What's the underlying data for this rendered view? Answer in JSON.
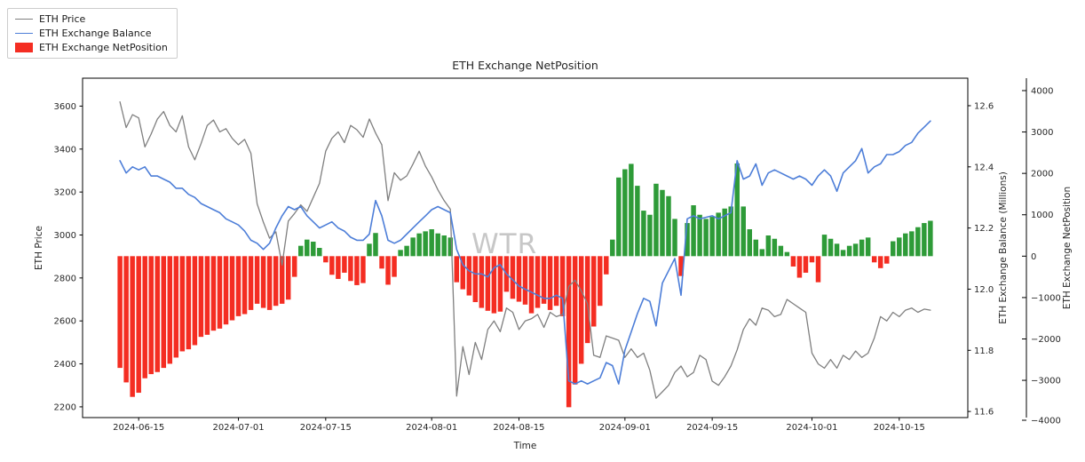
{
  "title": "ETH Exchange NetPosition",
  "watermark": "WTR",
  "colors": {
    "price_line": "#7f7f7f",
    "balance_line": "#4d7ed8",
    "net_positive": "#2e9b38",
    "net_negative": "#f42d22",
    "spine": "#000000",
    "watermark": "#c7c7c7"
  },
  "legend": {
    "position": "top-left",
    "items": [
      {
        "label": "ETH Price",
        "swatch": "line",
        "color": "#7f7f7f"
      },
      {
        "label": "ETH Exchange Balance",
        "swatch": "line",
        "color": "#4d7ed8"
      },
      {
        "label": "ETH Exchange NetPosition",
        "swatch": "patch",
        "color": "#f42d22"
      }
    ]
  },
  "axes": {
    "x": {
      "label": "Time",
      "range": [
        "2024-06-06",
        "2024-10-26"
      ],
      "ticks": [
        "2024-06-15",
        "2024-07-01",
        "2024-07-15",
        "2024-08-01",
        "2024-08-15",
        "2024-09-01",
        "2024-09-15",
        "2024-10-01",
        "2024-10-15"
      ]
    },
    "price": {
      "label": "ETH Price",
      "side": "left",
      "range": [
        2150,
        3730
      ],
      "ticks": [
        {
          "v": 3600,
          "label": "3600"
        },
        {
          "v": 3400,
          "label": "3400"
        },
        {
          "v": 3200,
          "label": "3200"
        },
        {
          "v": 3000,
          "label": "3000"
        },
        {
          "v": 2800,
          "label": "2800"
        },
        {
          "v": 2600,
          "label": "2600"
        },
        {
          "v": 2400,
          "label": "2400"
        },
        {
          "v": 2200,
          "label": "2200"
        }
      ]
    },
    "balance": {
      "label": "ETH Exchange Balance (Millions)",
      "side": "right",
      "range": [
        11.58,
        12.69
      ],
      "ticks": [
        {
          "v": 12.6,
          "label": "12.6"
        },
        {
          "v": 12.4,
          "label": "12.4"
        },
        {
          "v": 12.2,
          "label": "12.2"
        },
        {
          "v": 12.0,
          "label": "12.0"
        },
        {
          "v": 11.8,
          "label": "11.8"
        },
        {
          "v": 11.6,
          "label": "11.6"
        }
      ]
    },
    "net": {
      "label": "ETH Exchange NetPosition",
      "side": "right-offset",
      "range": [
        -3900,
        4300
      ],
      "ticks": [
        {
          "v": 4000,
          "label": "4000"
        },
        {
          "v": 3000,
          "label": "3000"
        },
        {
          "v": 2000,
          "label": "2000"
        },
        {
          "v": 1000,
          "label": "1000"
        },
        {
          "v": 0,
          "label": "0"
        },
        {
          "v": -1000,
          "label": "−1000"
        },
        {
          "v": -2000,
          "label": "−2000"
        },
        {
          "v": -3000,
          "label": "−3000"
        },
        {
          "v": -4000,
          "label": "−4000"
        }
      ]
    }
  },
  "chart_data": {
    "type": "mixed",
    "title": "ETH Exchange NetPosition",
    "xlabel": "Time",
    "grid": false,
    "legend_position": "upper-left-outside",
    "x": [
      "2024-06-12",
      "2024-06-13",
      "2024-06-14",
      "2024-06-15",
      "2024-06-16",
      "2024-06-17",
      "2024-06-18",
      "2024-06-19",
      "2024-06-20",
      "2024-06-21",
      "2024-06-22",
      "2024-06-23",
      "2024-06-24",
      "2024-06-25",
      "2024-06-26",
      "2024-06-27",
      "2024-06-28",
      "2024-06-29",
      "2024-06-30",
      "2024-07-01",
      "2024-07-02",
      "2024-07-03",
      "2024-07-04",
      "2024-07-05",
      "2024-07-06",
      "2024-07-07",
      "2024-07-08",
      "2024-07-09",
      "2024-07-10",
      "2024-07-11",
      "2024-07-12",
      "2024-07-13",
      "2024-07-14",
      "2024-07-15",
      "2024-07-16",
      "2024-07-17",
      "2024-07-18",
      "2024-07-19",
      "2024-07-20",
      "2024-07-21",
      "2024-07-22",
      "2024-07-23",
      "2024-07-24",
      "2024-07-25",
      "2024-07-26",
      "2024-07-27",
      "2024-07-28",
      "2024-07-29",
      "2024-07-30",
      "2024-07-31",
      "2024-08-01",
      "2024-08-02",
      "2024-08-03",
      "2024-08-04",
      "2024-08-05",
      "2024-08-06",
      "2024-08-07",
      "2024-08-08",
      "2024-08-09",
      "2024-08-10",
      "2024-08-11",
      "2024-08-12",
      "2024-08-13",
      "2024-08-14",
      "2024-08-15",
      "2024-08-16",
      "2024-08-17",
      "2024-08-18",
      "2024-08-19",
      "2024-08-20",
      "2024-08-21",
      "2024-08-22",
      "2024-08-23",
      "2024-08-24",
      "2024-08-25",
      "2024-08-26",
      "2024-08-27",
      "2024-08-28",
      "2024-08-29",
      "2024-08-30",
      "2024-08-31",
      "2024-09-01",
      "2024-09-02",
      "2024-09-03",
      "2024-09-04",
      "2024-09-05",
      "2024-09-06",
      "2024-09-07",
      "2024-09-08",
      "2024-09-09",
      "2024-09-10",
      "2024-09-11",
      "2024-09-12",
      "2024-09-13",
      "2024-09-14",
      "2024-09-15",
      "2024-09-16",
      "2024-09-17",
      "2024-09-18",
      "2024-09-19",
      "2024-09-20",
      "2024-09-21",
      "2024-09-22",
      "2024-09-23",
      "2024-09-24",
      "2024-09-25",
      "2024-09-26",
      "2024-09-27",
      "2024-09-28",
      "2024-09-29",
      "2024-09-30",
      "2024-10-01",
      "2024-10-02",
      "2024-10-03",
      "2024-10-04",
      "2024-10-05",
      "2024-10-06",
      "2024-10-07",
      "2024-10-08",
      "2024-10-09",
      "2024-10-10",
      "2024-10-11",
      "2024-10-12",
      "2024-10-13",
      "2024-10-14",
      "2024-10-15",
      "2024-10-16",
      "2024-10-17",
      "2024-10-18",
      "2024-10-19",
      "2024-10-20"
    ],
    "series": [
      {
        "name": "ETH Price",
        "type": "line",
        "yaxis": "price",
        "color": "#7f7f7f",
        "values": [
          3620,
          3500,
          3560,
          3545,
          3410,
          3470,
          3540,
          3575,
          3510,
          3480,
          3555,
          3410,
          3350,
          3425,
          3510,
          3535,
          3480,
          3495,
          3450,
          3420,
          3445,
          3380,
          3145,
          3060,
          2985,
          3015,
          2860,
          3065,
          3100,
          3140,
          3110,
          3175,
          3240,
          3390,
          3450,
          3480,
          3430,
          3510,
          3490,
          3455,
          3540,
          3475,
          3420,
          3160,
          3290,
          3255,
          3275,
          3330,
          3390,
          3320,
          3270,
          3210,
          3160,
          3120,
          2250,
          2480,
          2350,
          2500,
          2420,
          2560,
          2600,
          2550,
          2660,
          2640,
          2560,
          2600,
          2610,
          2630,
          2570,
          2640,
          2620,
          2630,
          2760,
          2790,
          2740,
          2680,
          2440,
          2430,
          2530,
          2520,
          2510,
          2430,
          2470,
          2430,
          2450,
          2370,
          2240,
          2270,
          2300,
          2360,
          2390,
          2340,
          2360,
          2440,
          2420,
          2320,
          2300,
          2340,
          2390,
          2465,
          2560,
          2610,
          2580,
          2660,
          2650,
          2620,
          2630,
          2700,
          2680,
          2660,
          2640,
          2450,
          2400,
          2380,
          2420,
          2380,
          2440,
          2420,
          2460,
          2430,
          2450,
          2520,
          2620,
          2600,
          2640,
          2620,
          2650,
          2660,
          2640,
          2655,
          2650
        ]
      },
      {
        "name": "ETH Exchange Balance",
        "type": "line",
        "yaxis": "balance",
        "color": "#4d7ed8",
        "values": [
          12.42,
          12.38,
          12.4,
          12.39,
          12.4,
          12.37,
          12.37,
          12.36,
          12.35,
          12.33,
          12.33,
          12.31,
          12.3,
          12.28,
          12.27,
          12.26,
          12.25,
          12.23,
          12.22,
          12.21,
          12.19,
          12.16,
          12.15,
          12.13,
          12.15,
          12.2,
          12.24,
          12.27,
          12.26,
          12.27,
          12.24,
          12.22,
          12.2,
          12.21,
          12.22,
          12.2,
          12.19,
          12.17,
          12.16,
          12.16,
          12.18,
          12.29,
          12.24,
          12.16,
          12.15,
          12.16,
          12.18,
          12.2,
          12.22,
          12.24,
          12.26,
          12.27,
          12.26,
          12.25,
          12.13,
          12.08,
          12.06,
          12.05,
          12.05,
          12.04,
          12.07,
          12.08,
          12.05,
          12.03,
          12.01,
          12.0,
          11.99,
          11.98,
          11.97,
          11.97,
          11.98,
          11.97,
          11.7,
          11.69,
          11.7,
          11.69,
          11.7,
          11.71,
          11.76,
          11.75,
          11.69,
          11.8,
          11.86,
          11.92,
          11.97,
          11.96,
          11.88,
          12.02,
          12.06,
          12.1,
          11.98,
          12.23,
          12.24,
          12.23,
          12.235,
          12.24,
          12.23,
          12.24,
          12.25,
          12.42,
          12.36,
          12.37,
          12.41,
          12.34,
          12.38,
          12.39,
          12.38,
          12.37,
          12.36,
          12.37,
          12.36,
          12.34,
          12.37,
          12.39,
          12.37,
          12.32,
          12.38,
          12.4,
          12.42,
          12.46,
          12.38,
          12.4,
          12.41,
          12.44,
          12.44,
          12.45,
          12.47,
          12.48,
          12.51,
          12.53,
          12.55
        ]
      },
      {
        "name": "ETH Exchange NetPosition",
        "type": "bar",
        "yaxis": "net",
        "color_positive": "#2e9b38",
        "color_negative": "#f42d22",
        "values": [
          -2700,
          -3050,
          -3400,
          -3300,
          -2950,
          -2850,
          -2800,
          -2700,
          -2600,
          -2450,
          -2300,
          -2250,
          -2150,
          -1950,
          -1900,
          -1800,
          -1750,
          -1650,
          -1550,
          -1450,
          -1400,
          -1300,
          -1150,
          -1250,
          -1300,
          -1200,
          -1150,
          -1050,
          -500,
          250,
          400,
          350,
          200,
          -150,
          -450,
          -550,
          -400,
          -600,
          -700,
          -650,
          300,
          560,
          -300,
          -690,
          -500,
          150,
          250,
          450,
          550,
          600,
          650,
          550,
          500,
          450,
          -630,
          -800,
          -950,
          -1110,
          -1250,
          -1320,
          -1380,
          -1340,
          -860,
          -1030,
          -1100,
          -1170,
          -1380,
          -1250,
          -1150,
          -1300,
          -1200,
          -1450,
          -3650,
          -3100,
          -2600,
          -2100,
          -1700,
          -1200,
          -440,
          400,
          1900,
          2100,
          2230,
          1700,
          1100,
          1000,
          1750,
          1600,
          1450,
          900,
          -480,
          800,
          1230,
          1000,
          900,
          950,
          1050,
          1150,
          1200,
          2240,
          1200,
          650,
          400,
          170,
          500,
          420,
          250,
          100,
          -250,
          -520,
          -400,
          -150,
          -630,
          520,
          420,
          300,
          150,
          250,
          300,
          400,
          450,
          -150,
          -290,
          -180,
          360,
          450,
          550,
          600,
          700,
          800,
          855
        ]
      }
    ]
  }
}
